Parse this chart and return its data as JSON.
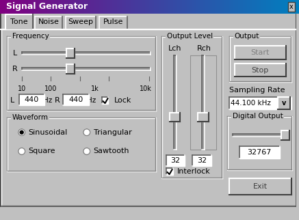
{
  "title": "Signal Generator",
  "title_bar_color_left": "#800080",
  "title_bar_color_right": "#0080C0",
  "bg_color": "#C0C0C0",
  "tab_labels": [
    "Tone",
    "Noise",
    "Sweep",
    "Pulse"
  ],
  "active_tab": "Tone",
  "frequency_label": "Frequency",
  "freq_L_val": "440",
  "freq_R_val": "440",
  "freq_axis_labels": [
    "10",
    "100",
    "1k",
    "10k"
  ],
  "waveform_label": "Waveform",
  "waveform_options": [
    "Sinusoidal",
    "Triangular",
    "Square",
    "Sawtooth"
  ],
  "waveform_selected": "Sinusoidal",
  "output_level_label": "Output Level",
  "lch_label": "Lch",
  "rch_label": "Rch",
  "level_val": "32",
  "interlock_label": "Interlock",
  "output_label": "Output",
  "start_label": "Start",
  "stop_label": "Stop",
  "sampling_rate_label": "Sampling Rate",
  "sampling_rate_val": "44.100 kHz",
  "digital_output_label": "Digital Output",
  "digital_output_val": "32767",
  "exit_label": "Exit"
}
